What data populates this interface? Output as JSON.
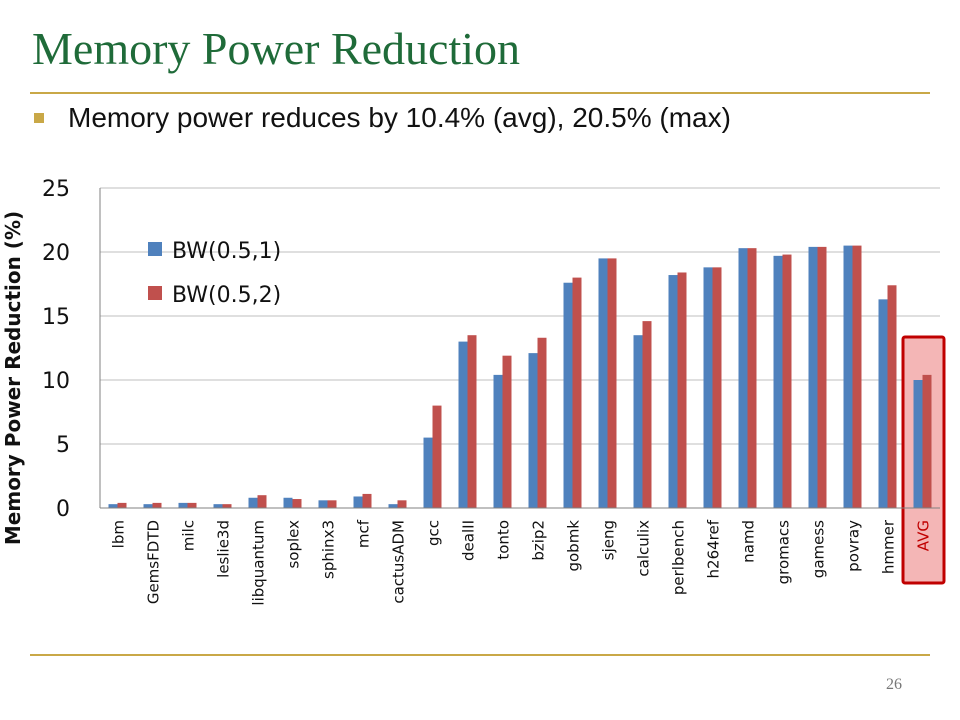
{
  "slide": {
    "title": "Memory Power Reduction",
    "bullet": "Memory power reduces by 10.4% (avg), 20.5% (max)",
    "page_number": "26"
  },
  "colors": {
    "title": "#1f6b39",
    "rule": "#c9a847",
    "series1": "#4f81bd",
    "series2": "#c0504d",
    "highlight_fill": "#f4b6b6",
    "highlight_border": "#c00000"
  },
  "chart_data": {
    "type": "bar",
    "title": "",
    "xlabel": "",
    "ylabel": "Memory Power Reduction (%)",
    "ylim": [
      0,
      25
    ],
    "yticks": [
      0,
      5,
      10,
      15,
      20,
      25
    ],
    "grid": true,
    "legend_position": "top-left",
    "categories": [
      "lbm",
      "GemsFDTD",
      "milc",
      "leslie3d",
      "libquantum",
      "soplex",
      "sphinx3",
      "mcf",
      "cactusADM",
      "gcc",
      "dealII",
      "tonto",
      "bzip2",
      "gobmk",
      "sjeng",
      "calculix",
      "perlbench",
      "h264ref",
      "namd",
      "gromacs",
      "gamess",
      "povray",
      "hmmer",
      "AVG"
    ],
    "highlighted_category": "AVG",
    "series": [
      {
        "name": "BW(0.5,1)",
        "values": [
          0.3,
          0.3,
          0.4,
          0.3,
          0.8,
          0.8,
          0.6,
          0.9,
          0.3,
          5.5,
          13.0,
          10.4,
          12.1,
          17.6,
          19.5,
          13.5,
          18.2,
          18.8,
          20.3,
          19.7,
          20.4,
          20.5,
          16.3,
          10.0
        ]
      },
      {
        "name": "BW(0.5,2)",
        "values": [
          0.4,
          0.4,
          0.4,
          0.3,
          1.0,
          0.7,
          0.6,
          1.1,
          0.6,
          8.0,
          13.5,
          11.9,
          13.3,
          18.0,
          19.5,
          14.6,
          18.4,
          18.8,
          20.3,
          19.8,
          20.4,
          20.5,
          17.4,
          10.4
        ]
      }
    ]
  }
}
